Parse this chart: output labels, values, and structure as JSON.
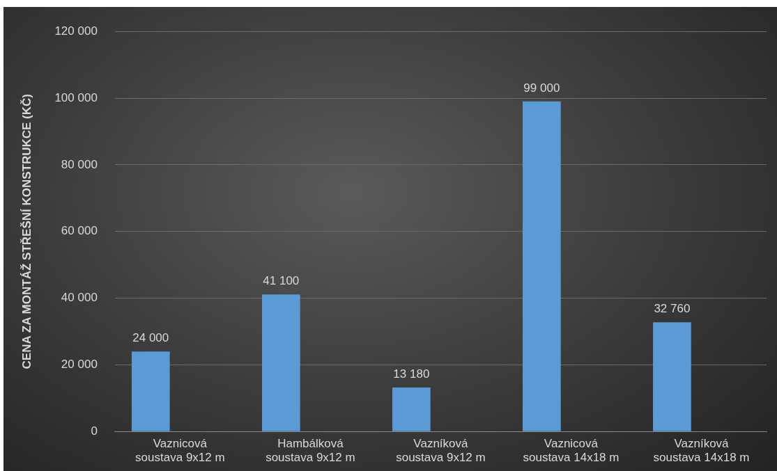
{
  "chart_data": {
    "type": "bar",
    "ylabel": "CENA ZA MONTÁŽ STŘEŠNÍ KONSTRUKCE (KČ)",
    "categories": [
      "Vaznicová soustava 9x12 m",
      "Hambálková soustava 9x12 m",
      "Vazníková soustava 9x12 m",
      "Vaznicová soustava 14x18 m",
      "Vazníková soustava 14x18 m"
    ],
    "values": [
      24000,
      41100,
      13180,
      99000,
      32760
    ],
    "color": "#5b9bd5",
    "ylim": [
      0,
      120000
    ],
    "yticks": [
      {
        "value": 0,
        "label": "0"
      },
      {
        "value": 20000,
        "label": "20 000"
      },
      {
        "value": 40000,
        "label": "40 000"
      },
      {
        "value": 60000,
        "label": "60 000"
      },
      {
        "value": 80000,
        "label": "80 000"
      },
      {
        "value": 100000,
        "label": "100 000"
      },
      {
        "value": 120000,
        "label": "120 000"
      }
    ],
    "value_labels": [
      "24 000",
      "41 100",
      "13 180",
      "99 000",
      "32 760"
    ],
    "grid": "y",
    "legend": false
  }
}
